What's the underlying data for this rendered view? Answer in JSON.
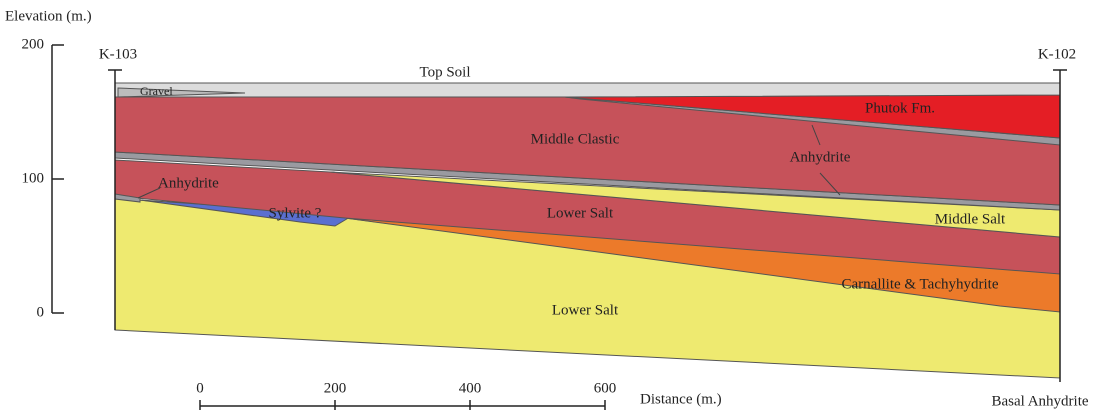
{
  "elevation_axis": {
    "title": "Elevation (m.)",
    "lim": [
      0,
      200
    ],
    "ticks": [
      200,
      100,
      0
    ]
  },
  "distance_axis": {
    "title": "Distance (m.)",
    "lim": [
      0,
      600
    ],
    "ticks": [
      0,
      200,
      400,
      600
    ]
  },
  "wells": {
    "left": "K-103",
    "right": "K-102"
  },
  "units": {
    "top_soil": "Top Soil",
    "gravel": "Gravel",
    "phutok": "Phutok Fm.",
    "middle_clastic": "Middle Clastic",
    "anhydrite_upper": "Anhydrite",
    "anhydrite_left": "Anhydrite",
    "lower_salt_upper": "Lower Salt",
    "sylvite": "Sylvite ?",
    "middle_salt": "Middle Salt",
    "carnallite": "Carnallite & Tachyhydrite",
    "lower_salt_lower": "Lower Salt",
    "basal_anhydrite": "Basal Anhydrite"
  }
}
